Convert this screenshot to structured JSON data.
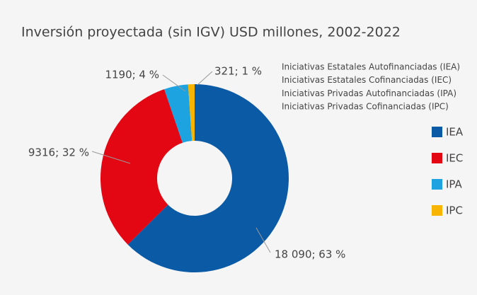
{
  "chart_data": {
    "type": "donut",
    "title": "Inversión proyectada (sin IGV) USD millones, 2002-2022",
    "notes": [
      "Iniciativas Estatales Autofinanciadas (IEA)",
      "Iniciativas Estatales Cofinanciadas (IEC)",
      "Iniciativas Privadas Autofinanciadas (IPA)",
      "Iniciativas Privadas Cofinanciadas (IPC)"
    ],
    "categories": [
      "IEA",
      "IEC",
      "IPA",
      "IPC"
    ],
    "values": [
      18090,
      9316,
      1190,
      321
    ],
    "value_labels": [
      "18 090; 63 %",
      "9316; 32 %",
      "1190; 4 %",
      "321; 1 %"
    ],
    "colors": [
      "#0b5aa6",
      "#e30613",
      "#1ca3e0",
      "#f7b500"
    ],
    "legend": "right"
  }
}
